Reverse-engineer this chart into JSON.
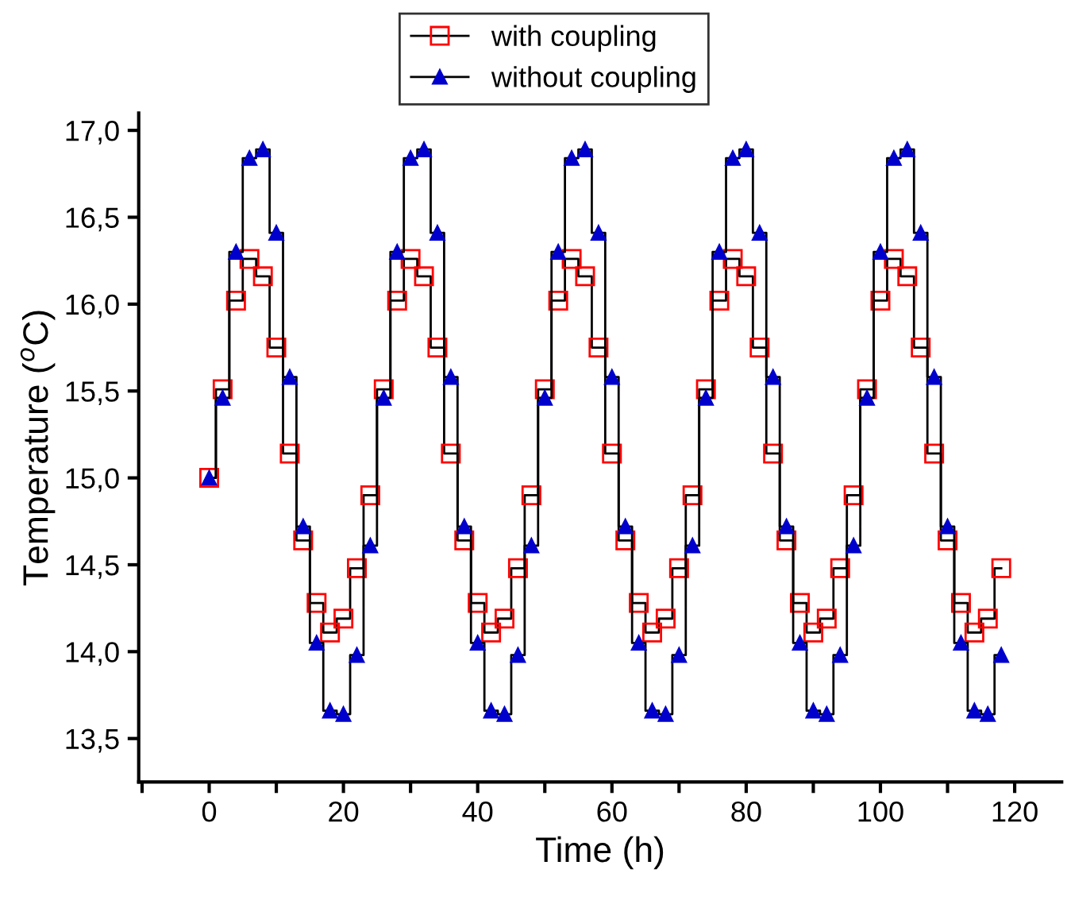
{
  "chart_data": {
    "type": "step",
    "xlabel": "Time (h)",
    "ylabel": "Temperature ($^{o}$C)",
    "x": [
      0,
      2,
      4,
      6,
      8,
      10,
      12,
      14,
      16,
      18,
      20,
      22,
      24,
      26,
      28,
      30,
      32,
      34,
      36,
      38,
      40,
      42,
      44,
      46,
      48,
      50,
      52,
      54,
      56,
      58,
      60,
      62,
      64,
      66,
      68,
      70,
      72,
      74,
      76,
      78,
      80,
      82,
      84,
      86,
      88,
      90,
      92,
      94,
      96,
      98,
      100,
      102,
      104,
      106,
      108,
      110,
      112,
      114,
      116,
      118
    ],
    "series": [
      {
        "name": "with coupling",
        "color": "#ff0000",
        "marker": "square",
        "values": [
          15.0,
          15.51,
          16.02,
          16.26,
          16.16,
          15.75,
          15.14,
          14.64,
          14.28,
          14.11,
          14.19,
          14.48,
          14.9,
          15.51,
          16.02,
          16.26,
          16.16,
          15.75,
          15.14,
          14.64,
          14.28,
          14.11,
          14.19,
          14.48,
          14.9,
          15.51,
          16.02,
          16.26,
          16.16,
          15.75,
          15.14,
          14.64,
          14.28,
          14.11,
          14.19,
          14.48,
          14.9,
          15.51,
          16.02,
          16.26,
          16.16,
          15.75,
          15.14,
          14.64,
          14.28,
          14.11,
          14.19,
          14.48,
          14.9,
          15.51,
          16.02,
          16.26,
          16.16,
          15.75,
          15.14,
          14.64,
          14.28,
          14.11,
          14.19,
          14.48
        ]
      },
      {
        "name": "without coupling",
        "color": "#0000cc",
        "marker": "triangle",
        "values": [
          15.0,
          15.46,
          16.3,
          16.84,
          16.89,
          16.41,
          15.58,
          14.72,
          14.05,
          13.66,
          13.64,
          13.98,
          14.61,
          15.46,
          16.3,
          16.84,
          16.89,
          16.41,
          15.58,
          14.72,
          14.05,
          13.66,
          13.64,
          13.98,
          14.61,
          15.46,
          16.3,
          16.84,
          16.89,
          16.41,
          15.58,
          14.72,
          14.05,
          13.66,
          13.64,
          13.98,
          14.61,
          15.46,
          16.3,
          16.84,
          16.89,
          16.41,
          15.58,
          14.72,
          14.05,
          13.66,
          13.64,
          13.98,
          14.61,
          15.46,
          16.3,
          16.84,
          16.89,
          16.41,
          15.58,
          14.72,
          14.05,
          13.66,
          13.64,
          13.98
        ]
      }
    ],
    "xlim": [
      -10.5,
      127
    ],
    "ylim": [
      13.25,
      17.1
    ],
    "xticks": [
      {
        "value": -10,
        "label": null
      },
      0,
      {
        "value": 10,
        "label": null
      },
      20,
      {
        "value": 30,
        "label": null
      },
      40,
      {
        "value": 50,
        "label": null
      },
      60,
      {
        "value": 70,
        "label": null
      },
      80,
      {
        "value": 90,
        "label": null
      },
      100,
      {
        "value": 110,
        "label": null
      },
      120
    ],
    "yticks": [
      {
        "value": 13.5,
        "label": "13,5"
      },
      {
        "value": 14.0,
        "label": "14,0"
      },
      {
        "value": 14.5,
        "label": "14,5"
      },
      {
        "value": 15.0,
        "label": "15,0"
      },
      {
        "value": 15.5,
        "label": "15,5"
      },
      {
        "value": 16.0,
        "label": "16,0"
      },
      {
        "value": 16.5,
        "label": "16,5"
      },
      {
        "value": 17.0,
        "label": "17,0"
      }
    ],
    "legend": "top",
    "grid": false
  }
}
